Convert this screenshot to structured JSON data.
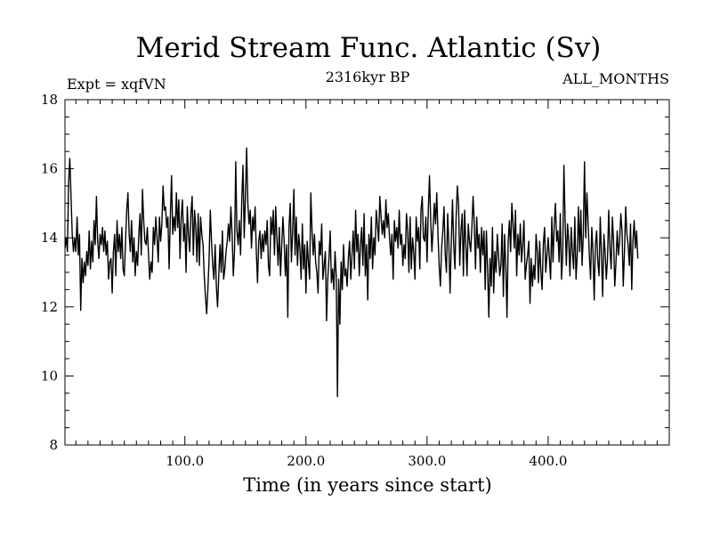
{
  "chart_data": {
    "type": "line",
    "title": "Merid Stream Func. Atlantic (Sv)",
    "experiment": "Expt = xqfVN",
    "period": "2316kyr BP",
    "months": "ALL_MONTHS",
    "xlabel": "Time (in years since start)",
    "ylabel": "",
    "xlim": [
      1,
      500
    ],
    "ylim": [
      8,
      18
    ],
    "x_ticks": [
      100,
      200,
      300,
      400
    ],
    "x_tick_labels": [
      "100.0",
      "200.0",
      "300.0",
      "400.0"
    ],
    "y_ticks": [
      8,
      10,
      12,
      14,
      16,
      18
    ],
    "y_tick_labels": [
      "8",
      "10",
      "12",
      "14",
      "16",
      "18"
    ],
    "grid": false,
    "series": [
      {
        "name": "Merid Stream Func. Atlantic",
        "color": "#000000",
        "x_start": 1,
        "x_step": 1,
        "values": [
          13.7,
          14.0,
          13.6,
          15.6,
          16.3,
          15.2,
          14.1,
          13.6,
          14.0,
          13.6,
          14.6,
          13.5,
          14.1,
          11.9,
          13.4,
          12.7,
          13.3,
          12.9,
          13.6,
          13.2,
          14.2,
          13.1,
          13.9,
          13.3,
          14.5,
          13.8,
          15.2,
          13.9,
          13.4,
          14.1,
          13.8,
          14.3,
          13.6,
          14.2,
          13.5,
          13.9,
          12.8,
          13.3,
          13.4,
          12.4,
          13.6,
          14.1,
          12.9,
          14.5,
          13.6,
          14.1,
          13.4,
          14.3,
          13.1,
          12.9,
          13.9,
          14.8,
          15.3,
          14.1,
          13.6,
          14.5,
          13.3,
          14.0,
          12.9,
          13.6,
          13.2,
          14.1,
          14.7,
          13.5,
          15.4,
          14.5,
          13.9,
          13.8,
          14.3,
          13.5,
          12.8,
          13.3,
          13.0,
          14.3,
          13.8,
          14.6,
          14.0,
          13.3,
          14.6,
          13.9,
          14.4,
          15.5,
          14.8,
          14.9,
          14.3,
          14.6,
          13.1,
          14.6,
          15.8,
          14.1,
          14.6,
          14.2,
          15.3,
          14.3,
          15.1,
          13.4,
          14.6,
          15.1,
          13.9,
          14.4,
          13.0,
          14.9,
          14.1,
          13.6,
          14.7,
          15.2,
          13.5,
          14.8,
          14.3,
          13.3,
          14.7,
          13.2,
          14.6,
          14.1,
          13.8,
          12.9,
          12.3,
          11.8,
          12.5,
          13.4,
          14.8,
          13.9,
          13.2,
          12.8,
          13.8,
          12.6,
          12.0,
          12.9,
          13.8,
          13.0,
          14.2,
          12.8,
          13.1,
          13.6,
          13.9,
          14.4,
          13.9,
          14.9,
          14.1,
          12.9,
          13.6,
          16.2,
          14.2,
          13.8,
          14.5,
          13.5,
          15.1,
          16.1,
          14.0,
          15.2,
          16.6,
          15.0,
          14.4,
          14.8,
          13.7,
          14.6,
          14.2,
          14.9,
          13.6,
          12.7,
          13.9,
          14.2,
          13.4,
          14.1,
          13.6,
          14.2,
          13.8,
          14.5,
          13.2,
          12.9,
          14.6,
          14.1,
          14.8,
          13.5,
          14.9,
          14.0,
          13.2,
          14.3,
          12.9,
          13.8,
          14.6,
          13.9,
          12.9,
          13.8,
          11.7,
          14.3,
          15.0,
          13.3,
          14.2,
          15.4,
          13.5,
          14.6,
          13.2,
          14.1,
          13.7,
          12.8,
          14.4,
          13.1,
          13.8,
          12.4,
          13.9,
          13.3,
          12.8,
          15.3,
          14.2,
          13.5,
          14.1,
          13.3,
          13.0,
          12.4,
          13.9,
          13.5,
          14.4,
          12.8,
          13.2,
          13.6,
          11.6,
          12.8,
          13.4,
          14.2,
          12.7,
          13.1,
          12.5,
          13.6,
          12.9,
          9.4,
          12.8,
          11.5,
          13.3,
          12.5,
          13.8,
          12.9,
          13.1,
          12.6,
          13.4,
          13.9,
          12.8,
          13.5,
          14.2,
          13.1,
          14.8,
          13.6,
          14.1,
          12.9,
          13.8,
          14.3,
          13.2,
          14.7,
          12.9,
          13.8,
          12.2,
          14.1,
          13.4,
          14.6,
          13.1,
          14.0,
          13.5,
          14.8,
          14.4,
          13.9,
          15.2,
          14.6,
          14.1,
          14.5,
          14.0,
          15.1,
          14.3,
          14.7,
          14.0,
          13.5,
          14.1,
          12.8,
          14.5,
          13.9,
          14.3,
          13.7,
          14.8,
          13.8,
          14.1,
          13.2,
          13.8,
          13.4,
          14.7,
          14.2,
          13.0,
          14.6,
          13.1,
          14.0,
          13.6,
          12.8,
          14.6,
          13.9,
          14.3,
          13.1,
          14.8,
          15.2,
          14.0,
          13.9,
          14.6,
          13.3,
          14.8,
          15.8,
          14.5,
          13.6,
          14.3,
          15.0,
          14.4,
          15.3,
          14.1,
          13.2,
          12.6,
          13.7,
          14.2,
          14.9,
          13.5,
          13.0,
          14.7,
          13.8,
          12.4,
          13.9,
          15.1,
          13.8,
          13.1,
          14.6,
          15.5,
          15.0,
          13.2,
          14.2,
          14.7,
          12.9,
          14.8,
          13.8,
          12.9,
          14.4,
          13.9,
          13.6,
          14.3,
          15.2,
          14.4,
          13.1,
          14.6,
          13.7,
          14.1,
          13.0,
          14.3,
          13.5,
          14.2,
          12.5,
          14.2,
          13.1,
          11.7,
          13.4,
          12.6,
          14.3,
          12.4,
          13.6,
          13.0,
          14.1,
          13.5,
          12.9,
          13.2,
          14.4,
          12.3,
          14.1,
          13.2,
          11.7,
          13.9,
          14.5,
          13.6,
          15.0,
          14.4,
          13.7,
          14.8,
          12.9,
          14.1,
          13.5,
          14.4,
          13.3,
          13.8,
          14.5,
          12.8,
          13.2,
          13.5,
          13.9,
          12.1,
          13.4,
          12.6,
          13.2,
          12.8,
          14.1,
          13.6,
          12.7,
          13.9,
          13.0,
          12.5,
          13.8,
          14.3,
          13.0,
          13.5,
          14.0,
          13.4,
          12.8,
          14.6,
          13.3,
          14.4,
          15.0,
          13.9,
          14.2,
          13.3,
          14.7,
          12.8,
          13.5,
          16.1,
          14.5,
          13.2,
          14.4,
          13.9,
          12.9,
          14.3,
          13.6,
          13.1,
          14.6,
          12.8,
          13.5,
          14.9,
          13.6,
          14.8,
          13.2,
          14.1,
          16.2,
          14.0,
          15.3,
          14.4,
          13.5,
          12.8,
          14.3,
          13.6,
          12.2,
          13.8,
          14.2,
          13.3,
          12.9,
          14.6,
          13.5,
          12.3,
          14.1,
          13.6,
          12.8,
          13.4,
          14.8,
          13.7,
          13.1,
          14.6,
          13.9,
          12.6,
          13.3,
          14.2,
          13.5,
          13.9,
          14.7,
          14.2,
          12.6,
          13.6,
          14.9,
          14.1,
          13.8,
          13.2,
          14.4,
          12.5,
          13.9,
          14.5,
          13.7,
          14.2,
          13.4
        ]
      }
    ]
  }
}
